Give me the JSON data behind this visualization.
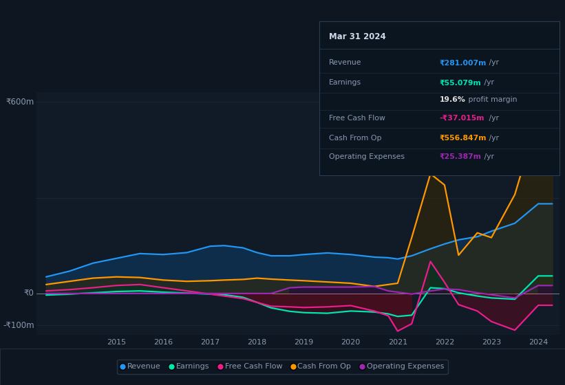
{
  "bg_color": "#0e1621",
  "plot_bg_color": "#111a27",
  "text_color": "#8b9ab0",
  "grid_color": "#1e2d3d",
  "years": [
    2013.5,
    2014.0,
    2014.5,
    2015.0,
    2015.5,
    2016.0,
    2016.5,
    2017.0,
    2017.3,
    2017.7,
    2018.0,
    2018.3,
    2018.7,
    2019.0,
    2019.5,
    2020.0,
    2020.5,
    2020.8,
    2021.0,
    2021.3,
    2021.7,
    2022.0,
    2022.3,
    2022.7,
    2023.0,
    2023.5,
    2024.0,
    2024.3
  ],
  "revenue": [
    52,
    70,
    95,
    110,
    125,
    122,
    128,
    148,
    150,
    143,
    128,
    118,
    118,
    122,
    127,
    122,
    114,
    112,
    108,
    118,
    140,
    155,
    168,
    178,
    195,
    220,
    281,
    281
  ],
  "earnings": [
    -5,
    -2,
    2,
    6,
    8,
    4,
    1,
    -2,
    -4,
    -12,
    -28,
    -45,
    -56,
    -60,
    -62,
    -55,
    -58,
    -64,
    -72,
    -68,
    18,
    15,
    2,
    -8,
    -14,
    -18,
    55,
    55
  ],
  "free_cash": [
    8,
    12,
    18,
    25,
    28,
    18,
    8,
    -2,
    -8,
    -16,
    -28,
    -40,
    -42,
    -44,
    -42,
    -38,
    -55,
    -70,
    -118,
    -95,
    100,
    35,
    -35,
    -55,
    -88,
    -115,
    -37,
    -37
  ],
  "cash_from_op": [
    28,
    38,
    48,
    52,
    50,
    42,
    38,
    40,
    42,
    44,
    48,
    45,
    42,
    40,
    36,
    32,
    22,
    28,
    32,
    175,
    375,
    340,
    120,
    190,
    175,
    310,
    556,
    556
  ],
  "op_expenses": [
    0,
    0,
    0,
    0,
    0,
    0,
    0,
    0,
    0,
    0,
    0,
    0,
    18,
    20,
    20,
    20,
    22,
    8,
    4,
    -2,
    8,
    14,
    12,
    2,
    -4,
    -14,
    25,
    25
  ],
  "revenue_color": "#2196f3",
  "earnings_color": "#00e5b0",
  "free_cash_color": "#e91e8c",
  "cash_from_op_color": "#ff9800",
  "op_expenses_color": "#9c27b0",
  "ylim": [
    -130,
    630
  ],
  "xtick_vals": [
    2015,
    2016,
    2017,
    2018,
    2019,
    2020,
    2021,
    2022,
    2023,
    2024
  ],
  "xtick_labels": [
    "2015",
    "2016",
    "2017",
    "2018",
    "2019",
    "2020",
    "2021",
    "2022",
    "2023",
    "2024"
  ],
  "ytick_labels": [
    "₹600m",
    "₹0",
    "-₹100m"
  ],
  "ytick_vals": [
    600,
    0,
    -100
  ],
  "tooltip_title": "Mar 31 2024",
  "tooltip_rows": [
    {
      "label": "Revenue",
      "value": "₹281.007m",
      "suffix": " /yr",
      "color": "#2196f3"
    },
    {
      "label": "Earnings",
      "value": "₹55.079m",
      "suffix": " /yr",
      "color": "#00e5b0"
    },
    {
      "label": "",
      "value": "19.6%",
      "suffix": " profit margin",
      "color": "#e0e0e0"
    },
    {
      "label": "Free Cash Flow",
      "value": "-₹37.015m",
      "suffix": " /yr",
      "color": "#e91e8c"
    },
    {
      "label": "Cash From Op",
      "value": "₹556.847m",
      "suffix": " /yr",
      "color": "#ff9800"
    },
    {
      "label": "Operating Expenses",
      "value": "₹25.387m",
      "suffix": " /yr",
      "color": "#9c27b0"
    }
  ],
  "legend_items": [
    "Revenue",
    "Earnings",
    "Free Cash Flow",
    "Cash From Op",
    "Operating Expenses"
  ],
  "legend_colors": [
    "#2196f3",
    "#00e5b0",
    "#e91e8c",
    "#ff9800",
    "#9c27b0"
  ]
}
